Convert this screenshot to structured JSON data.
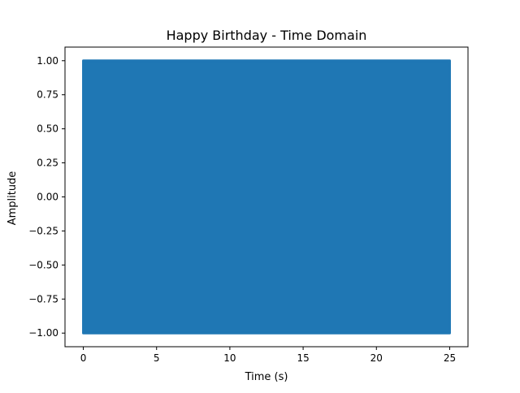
{
  "chart_data": {
    "type": "area",
    "title": "Happy Birthday - Time Domain",
    "xlabel": "Time (s)",
    "ylabel": "Amplitude",
    "xlim": [
      -1.25,
      26.25
    ],
    "ylim": [
      -1.1,
      1.1
    ],
    "xticks": [
      0,
      5,
      10,
      15,
      20,
      25
    ],
    "xtick_labels": [
      "0",
      "5",
      "10",
      "15",
      "20",
      "25"
    ],
    "yticks": [
      1.0,
      0.75,
      0.5,
      0.25,
      0.0,
      -0.25,
      -0.5,
      -0.75,
      -1.0
    ],
    "ytick_labels": [
      "1.00",
      "0.75",
      "0.50",
      "0.25",
      "0.00",
      "−0.25",
      "−0.50",
      "−0.75",
      "−1.00"
    ],
    "grid": false,
    "series": [
      {
        "color": "#1f77b4",
        "x_range": [
          0,
          25
        ],
        "envelope_min": -1.0,
        "envelope_max": 1.0
      }
    ]
  }
}
